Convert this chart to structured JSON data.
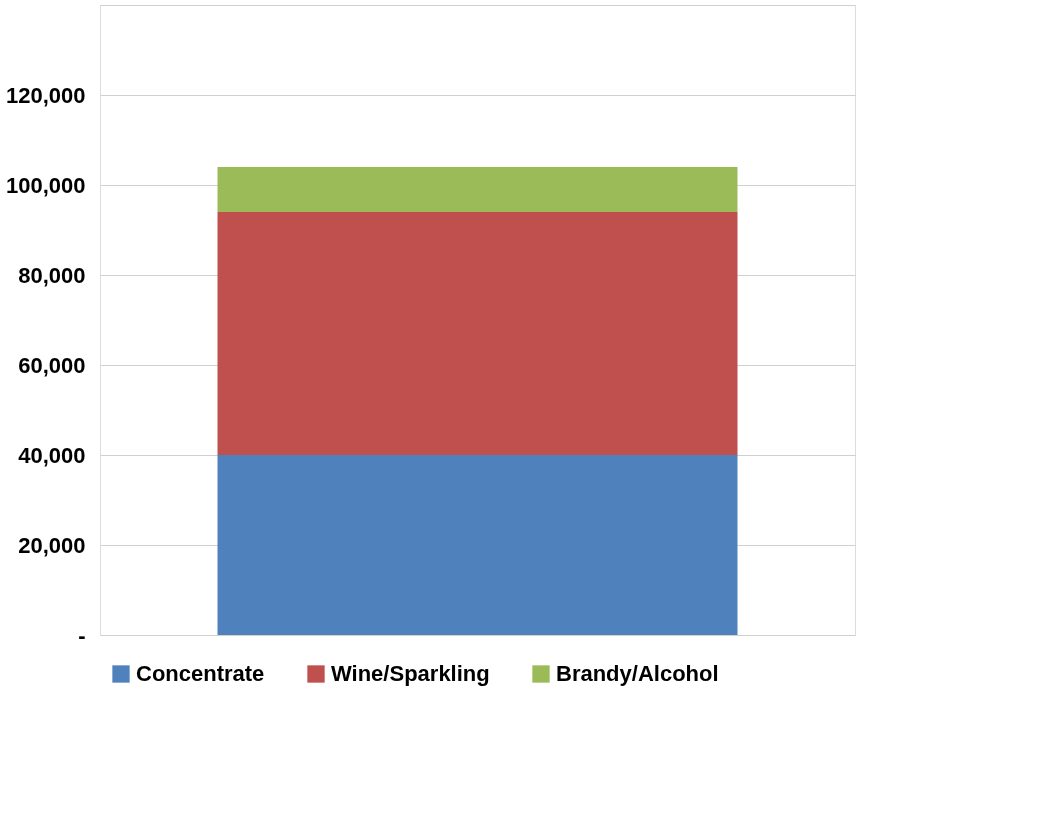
{
  "chart_data": {
    "type": "bar",
    "stacked": true,
    "categories": [
      null
    ],
    "series": [
      {
        "name": "Concentrate",
        "color": "#4f81bd",
        "values": [
          40000
        ]
      },
      {
        "name": "Wine/Sparkling",
        "color": "#c0504d",
        "values": [
          54000
        ]
      },
      {
        "name": "Brandy/Alcohol",
        "color": "#9bbb59",
        "values": [
          10000
        ]
      }
    ],
    "ylim": [
      0,
      140000
    ],
    "yticks": [
      {
        "value": 0,
        "label": "-"
      },
      {
        "value": 20000,
        "label": "20,000"
      },
      {
        "value": 40000,
        "label": "40,000"
      },
      {
        "value": 60000,
        "label": "60,000"
      },
      {
        "value": 80000,
        "label": "80,000"
      },
      {
        "value": 100000,
        "label": "100,000"
      },
      {
        "value": 120000,
        "label": "120,000"
      },
      {
        "value": 140000,
        "label": null
      }
    ],
    "grid": "y",
    "legend": "bottom",
    "tick_labels": "y"
  }
}
